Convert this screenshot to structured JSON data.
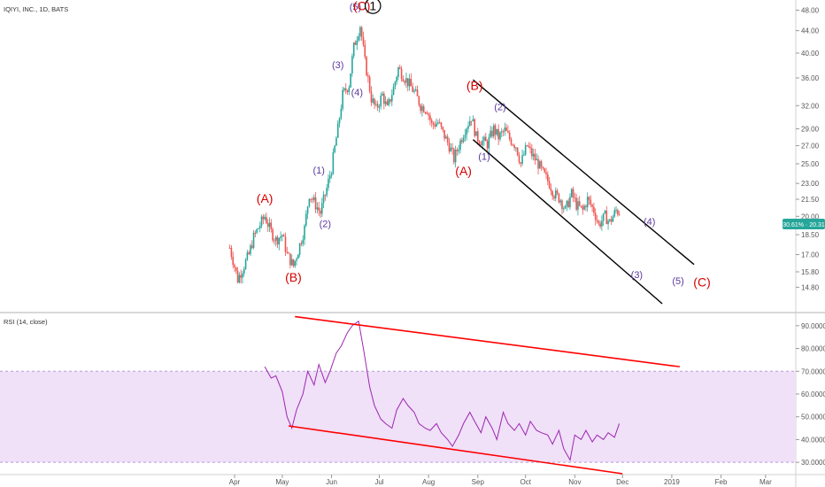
{
  "header": {
    "symbol_title": "IQIYI, INC., 1D, BATS"
  },
  "rsi_panel": {
    "title": "RSI (14, close)"
  },
  "price_badge": {
    "text": "30.61% · 20.31",
    "color": "#26a69a"
  },
  "colors": {
    "up": "#26a69a",
    "down": "#ef5350",
    "rsi_line": "#9c27b0",
    "rsi_band": "#f0e0f8",
    "red_trend": "#ff0000",
    "wave_red": "#d50000",
    "wave_purple": "#5b3a9e"
  },
  "chart_data": [
    {
      "type": "candlestick",
      "title": "IQIYI, INC., 1D, BATS",
      "ylim": [
        13.8,
        49
      ],
      "y_scale": "log",
      "price_ticks": [
        "48.00",
        "44.00",
        "40.00",
        "36.00",
        "32.00",
        "29.00",
        "27.00",
        "25.00",
        "23.00",
        "21.50",
        "20.00",
        "18.50",
        "17.00",
        "15.80",
        "14.80"
      ],
      "x_ticks": [
        "Apr",
        "May",
        "Jun",
        "Jul",
        "Aug",
        "Sep",
        "Oct",
        "Nov",
        "Dec",
        "2019",
        "Feb",
        "Mar"
      ],
      "x_tick_dates": [
        "2018-04-01",
        "2018-05-01",
        "2018-06-01",
        "2018-07-01",
        "2018-08-01",
        "2018-09-01",
        "2018-10-01",
        "2018-11-01",
        "2018-12-01",
        "2019-01-01",
        "2019-02-01",
        "2019-03-01"
      ],
      "price_path": [
        [
          "2018-03-29",
          17.5
        ],
        [
          "2018-04-03",
          15.3
        ],
        [
          "2018-04-06",
          16.0
        ],
        [
          "2018-04-10",
          17.0
        ],
        [
          "2018-04-13",
          18.3
        ],
        [
          "2018-04-17",
          19.3
        ],
        [
          "2018-04-20",
          20.0
        ],
        [
          "2018-04-24",
          18.7
        ],
        [
          "2018-04-27",
          18.1
        ],
        [
          "2018-05-01",
          18.5
        ],
        [
          "2018-05-04",
          17.0
        ],
        [
          "2018-05-08",
          16.2
        ],
        [
          "2018-05-11",
          17.3
        ],
        [
          "2018-05-15",
          19.0
        ],
        [
          "2018-05-18",
          22.0
        ],
        [
          "2018-05-22",
          21.0
        ],
        [
          "2018-05-25",
          20.3
        ],
        [
          "2018-05-29",
          22.5
        ],
        [
          "2018-06-01",
          24.5
        ],
        [
          "2018-06-05",
          29.0
        ],
        [
          "2018-06-08",
          33.5
        ],
        [
          "2018-06-12",
          35.0
        ],
        [
          "2018-06-15",
          41.0
        ],
        [
          "2018-06-19",
          45.0
        ],
        [
          "2018-06-22",
          38.5
        ],
        [
          "2018-06-26",
          33.0
        ],
        [
          "2018-06-29",
          31.5
        ],
        [
          "2018-07-03",
          33.5
        ],
        [
          "2018-07-06",
          31.5
        ],
        [
          "2018-07-10",
          34.5
        ],
        [
          "2018-07-13",
          37.5
        ],
        [
          "2018-07-17",
          36.0
        ],
        [
          "2018-07-20",
          35.0
        ],
        [
          "2018-07-24",
          33.5
        ],
        [
          "2018-07-27",
          32.0
        ],
        [
          "2018-07-31",
          31.5
        ],
        [
          "2018-08-03",
          29.5
        ],
        [
          "2018-08-07",
          29.8
        ],
        [
          "2018-08-10",
          28.5
        ],
        [
          "2018-08-14",
          27.0
        ],
        [
          "2018-08-17",
          25.5
        ],
        [
          "2018-08-21",
          27.5
        ],
        [
          "2018-08-24",
          29.0
        ],
        [
          "2018-08-28",
          30.5
        ],
        [
          "2018-08-31",
          28.0
        ],
        [
          "2018-09-04",
          27.5
        ],
        [
          "2018-09-07",
          27.2
        ],
        [
          "2018-09-11",
          29.0
        ],
        [
          "2018-09-14",
          28.0
        ],
        [
          "2018-09-18",
          28.8
        ],
        [
          "2018-09-21",
          27.8
        ],
        [
          "2018-09-25",
          27.0
        ],
        [
          "2018-09-28",
          25.0
        ],
        [
          "2018-10-02",
          27.0
        ],
        [
          "2018-10-05",
          26.0
        ],
        [
          "2018-10-09",
          25.0
        ],
        [
          "2018-10-12",
          24.0
        ],
        [
          "2018-10-16",
          23.0
        ],
        [
          "2018-10-19",
          22.0
        ],
        [
          "2018-10-23",
          21.5
        ],
        [
          "2018-10-26",
          20.5
        ],
        [
          "2018-10-30",
          22.0
        ],
        [
          "2018-11-02",
          21.0
        ],
        [
          "2018-11-06",
          20.5
        ],
        [
          "2018-11-09",
          21.5
        ],
        [
          "2018-11-13",
          20.5
        ],
        [
          "2018-11-16",
          19.3
        ],
        [
          "2018-11-20",
          20.0
        ],
        [
          "2018-11-23",
          19.5
        ],
        [
          "2018-11-27",
          20.5
        ],
        [
          "2018-11-30",
          20.3
        ]
      ],
      "annotations": [
        {
          "text": "(A)",
          "date": "2018-04-20",
          "price": 21.2,
          "color": "wave_red",
          "size": 14
        },
        {
          "text": "(B)",
          "date": "2018-05-08",
          "price": 15.15,
          "color": "wave_red",
          "size": 14
        },
        {
          "text": "(1)",
          "date": "2018-05-24",
          "price": 24.0,
          "color": "wave_purple",
          "size": 11
        },
        {
          "text": "(2)",
          "date": "2018-05-28",
          "price": 19.1,
          "color": "wave_purple",
          "size": 11
        },
        {
          "text": "(3)",
          "date": "2018-06-05",
          "price": 37.5,
          "color": "wave_purple",
          "size": 11
        },
        {
          "text": "(4)",
          "date": "2018-06-17",
          "price": 33.4,
          "color": "wave_purple",
          "size": 11
        },
        {
          "text": "(5)",
          "date": "2018-06-16",
          "price": 48.0,
          "color": "wave_purple",
          "size": 11
        },
        {
          "text": "(C)",
          "date": "2018-06-20",
          "price": 48.0,
          "color": "wave_red",
          "size": 14
        },
        {
          "text": "(A)",
          "date": "2018-08-23",
          "price": 23.8,
          "color": "wave_red",
          "size": 14
        },
        {
          "text": "(B)",
          "date": "2018-08-30",
          "price": 34.2,
          "color": "wave_red",
          "size": 14
        },
        {
          "text": "(1)",
          "date": "2018-09-05",
          "price": 25.4,
          "color": "wave_purple",
          "size": 11
        },
        {
          "text": "(2)",
          "date": "2018-09-15",
          "price": 31.4,
          "color": "wave_purple",
          "size": 11
        },
        {
          "text": "(4)",
          "date": "2018-12-18",
          "price": 19.3,
          "color": "wave_purple",
          "size": 11
        },
        {
          "text": "(3)",
          "date": "2018-12-10",
          "price": 15.4,
          "color": "wave_purple",
          "size": 11
        },
        {
          "text": "(5)",
          "date": "2019-01-05",
          "price": 15.0,
          "color": "wave_purple",
          "size": 11
        },
        {
          "text": "(C)",
          "date": "2019-01-20",
          "price": 14.85,
          "color": "wave_red",
          "size": 14
        },
        {
          "text": "1",
          "date": "2018-06-27",
          "price": 48.0,
          "color": "#000000",
          "size": 14,
          "circled": true
        }
      ],
      "trendlines": [
        {
          "from": [
            "2018-08-29",
            35.7
          ],
          "to": [
            "2019-01-15",
            16.3
          ],
          "color": "#000000"
        },
        {
          "from": [
            "2018-08-29",
            27.7
          ],
          "to": [
            "2018-12-26",
            13.8
          ],
          "color": "#000000"
        }
      ],
      "last_price": 20.31
    },
    {
      "type": "line",
      "title": "RSI (14, close)",
      "ylim": [
        25,
        95
      ],
      "y_ticks": [
        "90.0000",
        "80.0000",
        "70.0000",
        "60.0000",
        "50.0000",
        "40.0000",
        "30.0000"
      ],
      "band": [
        30,
        70
      ],
      "rsi_path": [
        [
          "2018-04-20",
          72
        ],
        [
          "2018-04-24",
          67
        ],
        [
          "2018-04-27",
          68
        ],
        [
          "2018-05-01",
          61
        ],
        [
          "2018-05-04",
          50
        ],
        [
          "2018-05-07",
          45
        ],
        [
          "2018-05-10",
          53
        ],
        [
          "2018-05-14",
          60
        ],
        [
          "2018-05-17",
          70
        ],
        [
          "2018-05-21",
          64
        ],
        [
          "2018-05-24",
          73
        ],
        [
          "2018-05-28",
          65
        ],
        [
          "2018-05-31",
          70
        ],
        [
          "2018-06-04",
          78
        ],
        [
          "2018-06-07",
          81
        ],
        [
          "2018-06-11",
          87
        ],
        [
          "2018-06-14",
          90
        ],
        [
          "2018-06-18",
          92
        ],
        [
          "2018-06-21",
          80
        ],
        [
          "2018-06-25",
          63
        ],
        [
          "2018-06-28",
          55
        ],
        [
          "2018-07-02",
          49
        ],
        [
          "2018-07-05",
          47
        ],
        [
          "2018-07-09",
          45
        ],
        [
          "2018-07-12",
          53
        ],
        [
          "2018-07-16",
          58
        ],
        [
          "2018-07-19",
          55
        ],
        [
          "2018-07-23",
          52
        ],
        [
          "2018-07-26",
          47
        ],
        [
          "2018-07-30",
          45
        ],
        [
          "2018-08-02",
          44
        ],
        [
          "2018-08-06",
          47
        ],
        [
          "2018-08-09",
          43
        ],
        [
          "2018-08-13",
          40
        ],
        [
          "2018-08-16",
          37
        ],
        [
          "2018-08-20",
          42
        ],
        [
          "2018-08-23",
          47
        ],
        [
          "2018-08-27",
          52
        ],
        [
          "2018-08-30",
          48
        ],
        [
          "2018-09-03",
          43
        ],
        [
          "2018-09-06",
          50
        ],
        [
          "2018-09-10",
          45
        ],
        [
          "2018-09-13",
          40
        ],
        [
          "2018-09-17",
          52
        ],
        [
          "2018-09-20",
          47
        ],
        [
          "2018-09-24",
          44
        ],
        [
          "2018-09-27",
          47
        ],
        [
          "2018-10-01",
          42
        ],
        [
          "2018-10-04",
          48
        ],
        [
          "2018-10-08",
          44
        ],
        [
          "2018-10-11",
          43
        ],
        [
          "2018-10-15",
          42
        ],
        [
          "2018-10-18",
          38
        ],
        [
          "2018-10-22",
          44
        ],
        [
          "2018-10-25",
          36
        ],
        [
          "2018-10-29",
          31
        ],
        [
          "2018-11-01",
          42
        ],
        [
          "2018-11-05",
          40
        ],
        [
          "2018-11-08",
          44
        ],
        [
          "2018-11-12",
          39
        ],
        [
          "2018-11-15",
          42
        ],
        [
          "2018-11-19",
          40
        ],
        [
          "2018-11-22",
          43
        ],
        [
          "2018-11-26",
          41
        ],
        [
          "2018-11-29",
          47
        ]
      ],
      "trendlines": [
        {
          "from": [
            "2018-05-09",
            94
          ],
          "to": [
            "2019-01-06",
            72
          ],
          "color": "#ff0000"
        },
        {
          "from": [
            "2018-05-05",
            46
          ],
          "to": [
            "2018-12-01",
            25
          ],
          "color": "#ff0000"
        }
      ]
    }
  ]
}
